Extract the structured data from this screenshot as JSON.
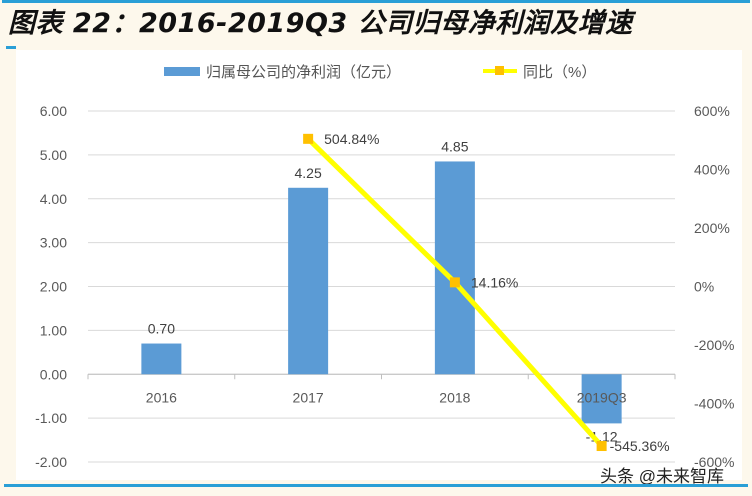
{
  "header": {
    "title": "图表 22：2016-2019Q3 公司归母净利润及增速"
  },
  "legend": {
    "series1": "归属母公司的净利润（亿元）",
    "series2": "同比（%）"
  },
  "watermark": "头条 @未来智库",
  "colors": {
    "bar": "#5b9bd5",
    "line": "#ffff00",
    "marker": "#ffc000",
    "accent": "#2a9fd6",
    "gridline": "#d9d9d9",
    "axis_text": "#595959"
  },
  "chart_data": {
    "type": "bar+line",
    "title": "图表 22：2016-2019Q3 公司归母净利润及增速",
    "categories": [
      "2016",
      "2017",
      "2018",
      "2019Q3"
    ],
    "series": [
      {
        "name": "归属母公司的净利润（亿元）",
        "type": "bar",
        "axis": "left",
        "values": [
          0.7,
          4.25,
          4.85,
          -1.12
        ],
        "labels": [
          "0.70",
          "4.25",
          "4.85",
          "-1.12"
        ]
      },
      {
        "name": "同比（%）",
        "type": "line",
        "axis": "right",
        "values": [
          null,
          504.84,
          14.16,
          -545.36
        ],
        "labels": [
          "",
          "504.84%",
          "14.16%",
          "-545.36%"
        ]
      }
    ],
    "left_axis": {
      "ylim": [
        -2.0,
        6.0
      ],
      "ticks": [
        "6.00",
        "5.00",
        "4.00",
        "3.00",
        "2.00",
        "1.00",
        "0.00",
        "-1.00",
        "-2.00"
      ]
    },
    "right_axis": {
      "ylim": [
        -600,
        600
      ],
      "ticks": [
        "600%",
        "400%",
        "200%",
        "0%",
        "-200%",
        "-400%",
        "-600%"
      ]
    },
    "grid": true,
    "legend_position": "top"
  }
}
